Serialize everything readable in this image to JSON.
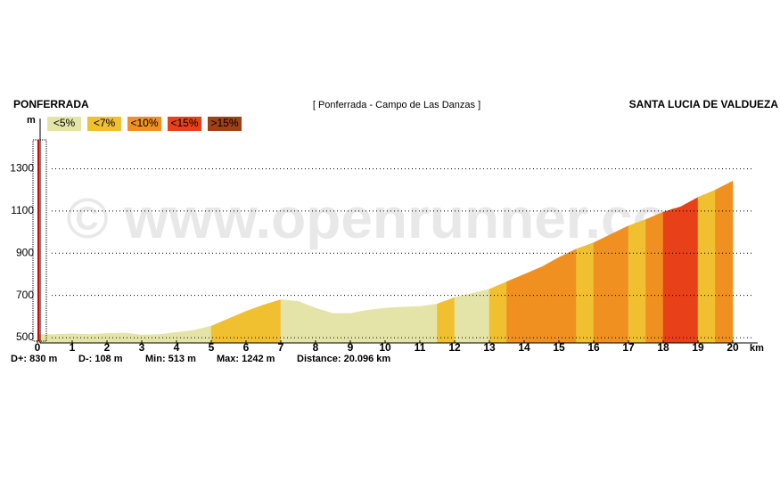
{
  "chart_data": {
    "type": "area",
    "title_left": "PONFERRADA",
    "title": "[ Ponferrada - Campo de Las Danzas ]",
    "title_right": "SANTA LUCIA DE VALDUEZA",
    "y_label": "m",
    "x_label": "km",
    "watermark": "© www.openrunner.com",
    "legend": [
      {
        "label": "<5%",
        "color": "#e4e4a8"
      },
      {
        "label": "<7%",
        "color": "#f0c030"
      },
      {
        "label": "<10%",
        "color": "#f09020"
      },
      {
        "label": "<15%",
        "color": "#e84018"
      },
      {
        "label": ">15%",
        "color": "#a04018"
      }
    ],
    "stats": [
      "D+: 830 m",
      "D-: 108 m",
      "Min: 513 m",
      "Max: 1242 m",
      "Distance: 20.096 km"
    ],
    "xlim": [
      0,
      20
    ],
    "xticks": [
      0,
      1,
      2,
      3,
      4,
      5,
      6,
      7,
      8,
      9,
      10,
      11,
      12,
      13,
      14,
      15,
      16,
      17,
      18,
      19,
      20
    ],
    "ylim": [
      475,
      1530
    ],
    "yticks": [
      500,
      700,
      900,
      1100,
      1300
    ],
    "grid": true,
    "series": [
      {
        "name": "Elevation",
        "x": [
          0,
          0.5,
          1,
          1.5,
          2,
          2.5,
          3,
          3.5,
          4,
          4.5,
          5,
          5.5,
          6,
          6.5,
          7,
          7.5,
          8,
          8.5,
          9,
          9.5,
          10,
          10.5,
          11,
          11.5,
          12,
          12.5,
          13,
          13.5,
          14,
          14.5,
          15,
          15.5,
          16,
          16.5,
          17,
          17.5,
          18,
          18.5,
          19,
          19.5,
          20
        ],
        "values": [
          515,
          515,
          518,
          515,
          520,
          522,
          513,
          515,
          525,
          535,
          555,
          590,
          625,
          655,
          680,
          672,
          640,
          615,
          615,
          630,
          640,
          645,
          648,
          660,
          690,
          710,
          730,
          765,
          800,
          835,
          880,
          920,
          950,
          990,
          1030,
          1060,
          1095,
          1120,
          1165,
          1200,
          1242
        ],
        "slope_classes": [
          0,
          0,
          0,
          0,
          0,
          0,
          0,
          0,
          0,
          0,
          1,
          1,
          1,
          1,
          0,
          0,
          0,
          0,
          0,
          0,
          0,
          0,
          0,
          1,
          0,
          0,
          1,
          2,
          2,
          2,
          2,
          1,
          2,
          2,
          1,
          2,
          3,
          3,
          1,
          2
        ]
      }
    ]
  }
}
